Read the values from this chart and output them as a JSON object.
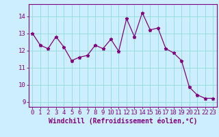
{
  "x": [
    0,
    1,
    2,
    3,
    4,
    5,
    6,
    7,
    8,
    9,
    10,
    11,
    12,
    13,
    14,
    15,
    16,
    17,
    18,
    19,
    20,
    21,
    22,
    23
  ],
  "y": [
    13.0,
    12.3,
    12.1,
    12.8,
    12.2,
    11.4,
    11.6,
    11.7,
    12.3,
    12.1,
    12.65,
    11.95,
    13.85,
    12.8,
    14.2,
    13.2,
    13.3,
    12.1,
    11.85,
    11.4,
    9.85,
    9.4,
    9.2,
    9.2
  ],
  "line_color": "#800080",
  "marker": "*",
  "bg_color": "#cceeff",
  "grid_color": "#99dddd",
  "ylabel_ticks": [
    9,
    10,
    11,
    12,
    13,
    14
  ],
  "xlabel": "Windchill (Refroidissement éolien,°C)",
  "xlim": [
    -0.5,
    23.5
  ],
  "ylim": [
    8.7,
    14.7
  ],
  "tick_label_color": "#800080",
  "axis_color": "#800080",
  "tick_font_size": 6.5,
  "label_font_size": 7.0
}
